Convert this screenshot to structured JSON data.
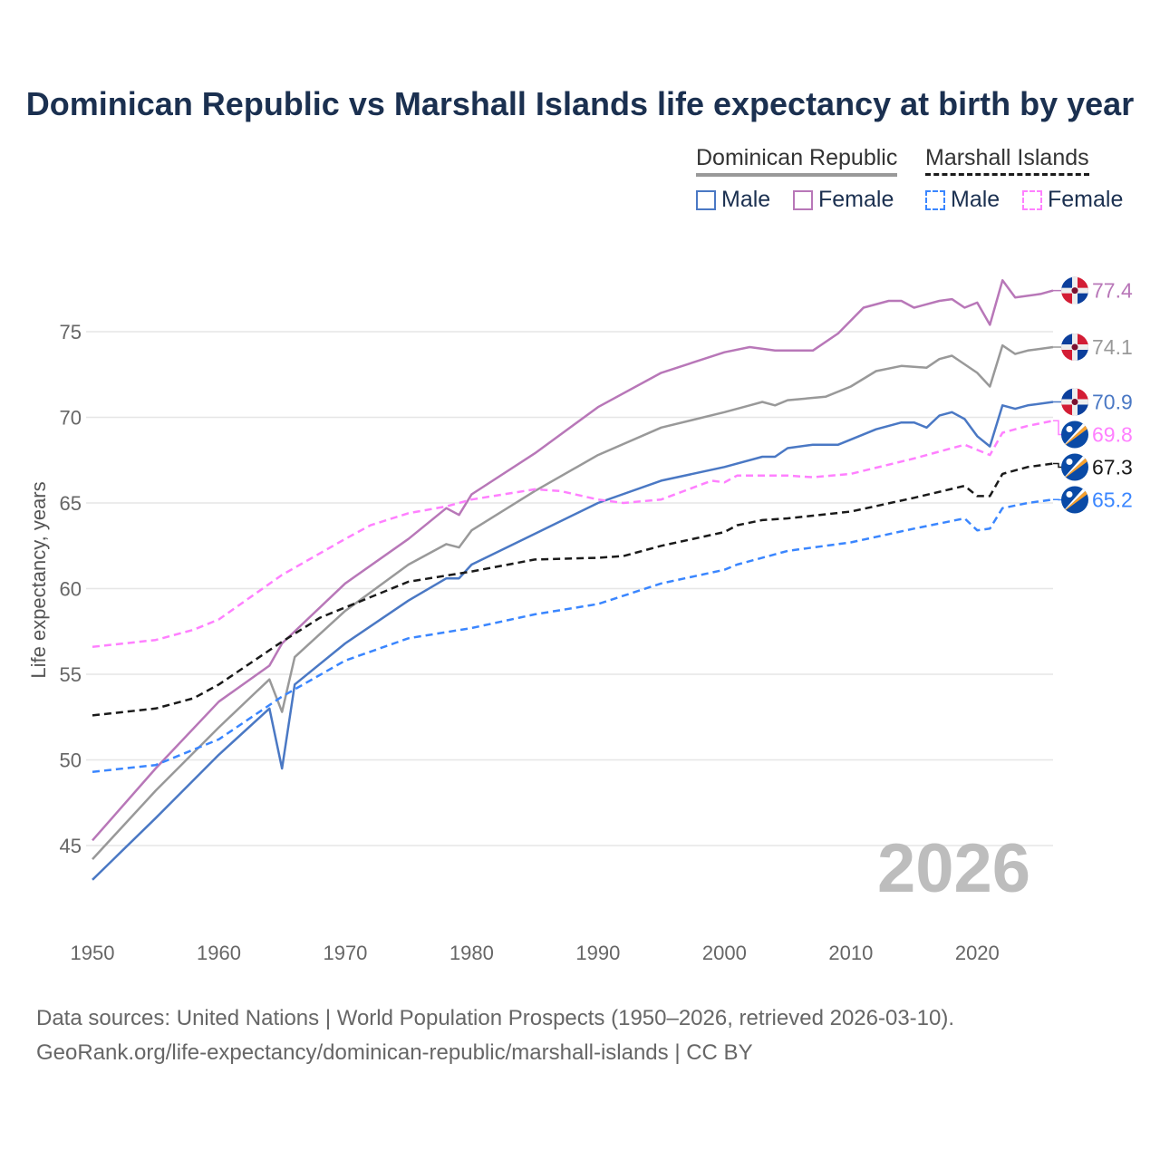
{
  "chart_data": {
    "type": "line",
    "title": "Dominican Republic vs Marshall Islands life expectancy at birth by year",
    "xlabel": "",
    "ylabel": "Life expectancy, years",
    "xlim": [
      1950,
      2026
    ],
    "ylim": [
      42,
      78.5
    ],
    "xticks": [
      "1950",
      "1960",
      "1970",
      "1980",
      "1990",
      "2000",
      "2010",
      "2020"
    ],
    "yticks": [
      "45",
      "50",
      "55",
      "60",
      "65",
      "70",
      "75"
    ],
    "grid": true,
    "legend": {
      "groups": [
        {
          "country": "Dominican Republic",
          "items": [
            "Male",
            "Female"
          ]
        },
        {
          "country": "Marshall Islands",
          "items": [
            "Male",
            "Female"
          ]
        }
      ],
      "placement": "top-right"
    },
    "series": [
      {
        "name": "Dominican Republic Female",
        "country": "Dominican Republic",
        "flag": "dr",
        "color": "#b877b8",
        "dashed": false,
        "end_label": "77.4",
        "x": [
          1950,
          1955,
          1960,
          1964,
          1965,
          1970,
          1975,
          1978,
          1979,
          1980,
          1985,
          1990,
          1995,
          2000,
          2002,
          2004,
          2007,
          2009,
          2011,
          2013,
          2014,
          2015,
          2017,
          2018,
          2019,
          2020,
          2021,
          2022,
          2023,
          2025,
          2026
        ],
        "y": [
          45.3,
          49.5,
          53.4,
          55.5,
          56.8,
          60.3,
          62.9,
          64.7,
          64.3,
          65.5,
          67.9,
          70.6,
          72.6,
          73.8,
          74.1,
          73.9,
          73.9,
          74.9,
          76.4,
          76.8,
          76.8,
          76.4,
          76.8,
          76.9,
          76.4,
          76.7,
          75.4,
          78.0,
          77.0,
          77.2,
          77.4
        ]
      },
      {
        "name": "Dominican Republic",
        "country": "Dominican Republic",
        "flag": "dr",
        "color": "#999999",
        "dashed": false,
        "end_label": "74.1",
        "x": [
          1950,
          1955,
          1960,
          1963,
          1964,
          1965,
          1966,
          1970,
          1975,
          1978,
          1979,
          1980,
          1985,
          1990,
          1995,
          2000,
          2002,
          2003,
          2004,
          2005,
          2008,
          2010,
          2012,
          2014,
          2016,
          2017,
          2018,
          2020,
          2021,
          2022,
          2023,
          2024,
          2026
        ],
        "y": [
          44.2,
          48.2,
          51.9,
          54.0,
          54.7,
          52.8,
          56.0,
          58.7,
          61.4,
          62.6,
          62.4,
          63.4,
          65.7,
          67.8,
          69.4,
          70.3,
          70.7,
          70.9,
          70.7,
          71.0,
          71.2,
          71.8,
          72.7,
          73.0,
          72.9,
          73.4,
          73.6,
          72.6,
          71.8,
          74.2,
          73.7,
          73.9,
          74.1
        ]
      },
      {
        "name": "Dominican Republic Male",
        "country": "Dominican Republic",
        "flag": "dr",
        "color": "#4a78c4",
        "dashed": false,
        "end_label": "70.9",
        "x": [
          1950,
          1955,
          1960,
          1964,
          1965,
          1966,
          1970,
          1975,
          1978,
          1979,
          1980,
          1985,
          1990,
          1995,
          2000,
          2003,
          2004,
          2005,
          2007,
          2009,
          2012,
          2014,
          2015,
          2016,
          2017,
          2018,
          2019,
          2020,
          2021,
          2022,
          2023,
          2024,
          2026
        ],
        "y": [
          43.0,
          46.6,
          50.3,
          53.0,
          49.5,
          54.4,
          56.8,
          59.3,
          60.6,
          60.6,
          61.4,
          63.2,
          65.0,
          66.3,
          67.1,
          67.7,
          67.7,
          68.2,
          68.4,
          68.4,
          69.3,
          69.7,
          69.7,
          69.4,
          70.1,
          70.3,
          69.9,
          68.9,
          68.3,
          70.7,
          70.5,
          70.7,
          70.9
        ]
      },
      {
        "name": "Marshall Islands Female",
        "country": "Marshall Islands",
        "flag": "mi",
        "color": "#ff80ff",
        "dashed": true,
        "end_label": "69.8",
        "x": [
          1950,
          1955,
          1958,
          1960,
          1965,
          1970,
          1972,
          1975,
          1978,
          1980,
          1985,
          1987,
          1990,
          1992,
          1995,
          1999,
          2000,
          2001,
          2005,
          2007,
          2010,
          2015,
          2019,
          2021,
          2022,
          2024,
          2026
        ],
        "y": [
          56.6,
          57.0,
          57.6,
          58.2,
          60.8,
          62.9,
          63.7,
          64.4,
          64.8,
          65.2,
          65.8,
          65.7,
          65.2,
          65.0,
          65.2,
          66.3,
          66.2,
          66.6,
          66.6,
          66.5,
          66.7,
          67.6,
          68.4,
          67.8,
          69.1,
          69.5,
          69.8
        ]
      },
      {
        "name": "Marshall Islands",
        "country": "Marshall Islands",
        "flag": "mi",
        "color": "#1a1a1a",
        "dashed": true,
        "end_label": "67.3",
        "x": [
          1950,
          1955,
          1958,
          1960,
          1965,
          1968,
          1970,
          1975,
          1980,
          1985,
          1990,
          1992,
          1995,
          2000,
          2001,
          2003,
          2005,
          2010,
          2015,
          2019,
          2020,
          2021,
          2022,
          2024,
          2026
        ],
        "y": [
          52.6,
          53.0,
          53.6,
          54.4,
          56.9,
          58.3,
          58.9,
          60.4,
          61.0,
          61.7,
          61.8,
          61.9,
          62.5,
          63.3,
          63.7,
          64.0,
          64.1,
          64.5,
          65.3,
          66.0,
          65.4,
          65.4,
          66.7,
          67.1,
          67.3
        ]
      },
      {
        "name": "Marshall Islands Male",
        "country": "Marshall Islands",
        "flag": "mi",
        "color": "#3a86ff",
        "dashed": true,
        "end_label": "65.2",
        "x": [
          1950,
          1955,
          1960,
          1965,
          1970,
          1975,
          1980,
          1985,
          1990,
          1995,
          2000,
          2001,
          2005,
          2010,
          2015,
          2019,
          2020,
          2021,
          2022,
          2024,
          2026
        ],
        "y": [
          49.3,
          49.7,
          51.2,
          53.7,
          55.8,
          57.1,
          57.7,
          58.5,
          59.1,
          60.3,
          61.1,
          61.4,
          62.2,
          62.7,
          63.5,
          64.1,
          63.4,
          63.5,
          64.7,
          65.0,
          65.2
        ]
      }
    ],
    "annotation": "2026"
  },
  "legend": {
    "dr_title": "Dominican Republic",
    "mi_title": "Marshall Islands",
    "dr_male": "Male",
    "dr_female": "Female",
    "mi_male": "Male",
    "mi_female": "Female"
  },
  "footer": {
    "line1": "Data sources: United Nations | World Population Prospects (1950–2026, retrieved 2026-03-10).",
    "line2": "GeoRank.org/life-expectancy/dominican-republic/marshall-islands | CC BY"
  }
}
